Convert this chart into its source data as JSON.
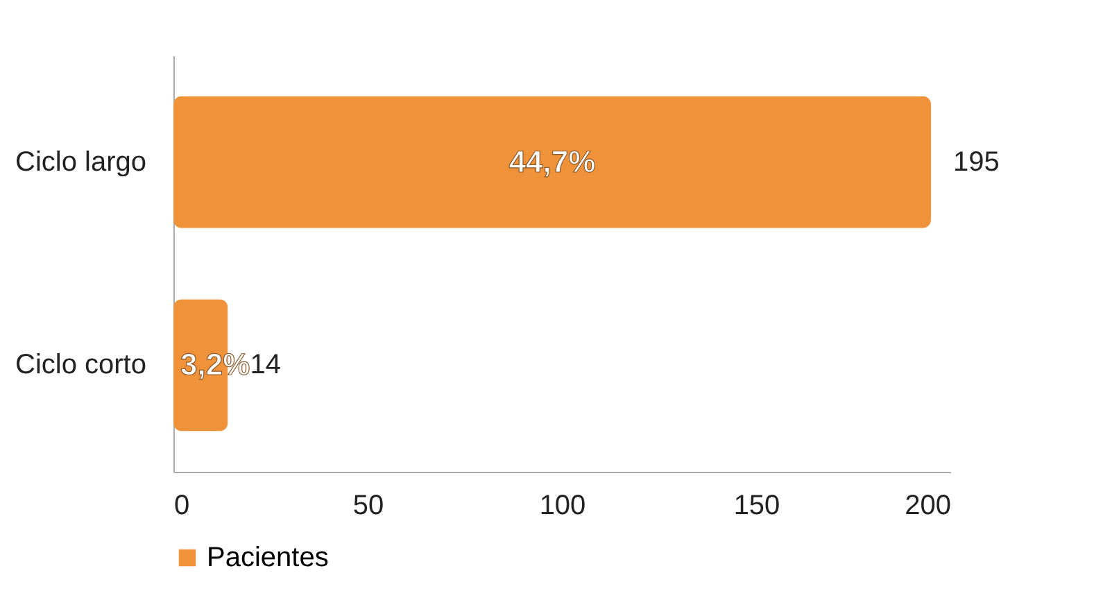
{
  "chart_data": {
    "type": "bar",
    "orientation": "horizontal",
    "categories": [
      "Ciclo largo",
      "Ciclo corto"
    ],
    "series": [
      {
        "name": "Pacientes",
        "color": "#f0923a",
        "values": [
          195,
          14
        ]
      }
    ],
    "xlim": [
      0,
      200
    ],
    "xticks": [
      0,
      50,
      100,
      150,
      200
    ],
    "data_labels": true,
    "legend": "bottom",
    "grid": false,
    "annotations": [
      "44,7%",
      "3,2%"
    ]
  }
}
